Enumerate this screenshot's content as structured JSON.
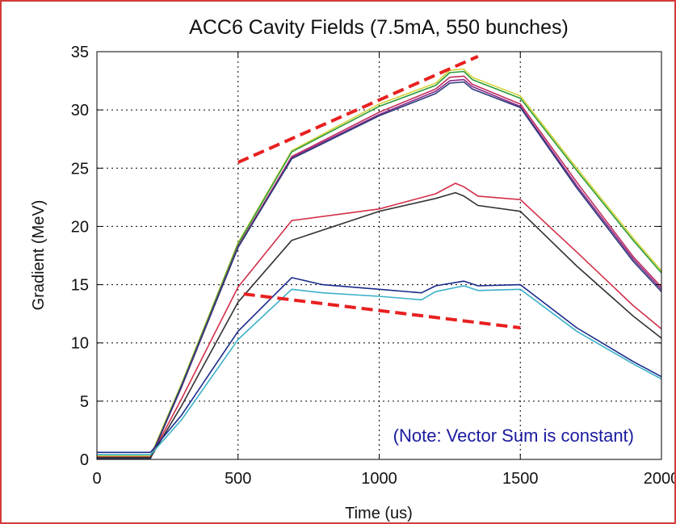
{
  "chart_data": {
    "type": "line",
    "title": "ACC6 Cavity Fields (7.5mA, 550 bunches)",
    "xlabel": "Time (us)",
    "ylabel": "Gradient (MeV)",
    "xlim": [
      0,
      2000
    ],
    "ylim": [
      0,
      35
    ],
    "xticks": [
      0,
      500,
      1000,
      1500,
      2000
    ],
    "xtick_labels": [
      "0",
      "500",
      "1000",
      "1500",
      "2000"
    ],
    "yticks": [
      0,
      5,
      10,
      15,
      20,
      25,
      30,
      35
    ],
    "ytick_labels": [
      "0",
      "5",
      "10",
      "15",
      "20",
      "25",
      "30",
      "35"
    ],
    "grid": true,
    "legend": "none",
    "series": [
      {
        "color": "#d4d43a",
        "points": [
          [
            0,
            0.3
          ],
          [
            190,
            0.3
          ],
          [
            300,
            6.5
          ],
          [
            500,
            18.6
          ],
          [
            690,
            26.5
          ],
          [
            1000,
            30.5
          ],
          [
            1200,
            32.3
          ],
          [
            1250,
            33.4
          ],
          [
            1300,
            33.5
          ],
          [
            1330,
            32.8
          ],
          [
            1500,
            31.2
          ],
          [
            1700,
            25.0
          ],
          [
            1900,
            19.0
          ],
          [
            2000,
            16.2
          ]
        ]
      },
      {
        "color": "#2e9c3a",
        "points": [
          [
            0,
            0.2
          ],
          [
            190,
            0.2
          ],
          [
            300,
            6.4
          ],
          [
            500,
            18.5
          ],
          [
            690,
            26.4
          ],
          [
            1000,
            30.3
          ],
          [
            1200,
            32.1
          ],
          [
            1250,
            33.2
          ],
          [
            1300,
            33.3
          ],
          [
            1330,
            32.6
          ],
          [
            1500,
            31.0
          ],
          [
            1700,
            24.8
          ],
          [
            1900,
            18.8
          ],
          [
            2000,
            16.0
          ]
        ]
      },
      {
        "color": "#c03060",
        "points": [
          [
            0,
            0.15
          ],
          [
            190,
            0.15
          ],
          [
            300,
            6.3
          ],
          [
            500,
            18.3
          ],
          [
            690,
            26.0
          ],
          [
            1000,
            29.8
          ],
          [
            1200,
            31.8
          ],
          [
            1250,
            32.8
          ],
          [
            1300,
            32.9
          ],
          [
            1330,
            32.2
          ],
          [
            1500,
            30.5
          ],
          [
            1700,
            23.8
          ],
          [
            1900,
            17.4
          ],
          [
            2000,
            14.8
          ]
        ]
      },
      {
        "color": "#8a2a8a",
        "points": [
          [
            0,
            0.1
          ],
          [
            190,
            0.1
          ],
          [
            300,
            6.2
          ],
          [
            500,
            18.2
          ],
          [
            690,
            25.9
          ],
          [
            1000,
            29.6
          ],
          [
            1200,
            31.6
          ],
          [
            1250,
            32.5
          ],
          [
            1300,
            32.6
          ],
          [
            1330,
            32.0
          ],
          [
            1500,
            30.3
          ],
          [
            1700,
            23.5
          ],
          [
            1900,
            17.2
          ],
          [
            2000,
            14.6
          ]
        ]
      },
      {
        "color": "#2a3a7a",
        "points": [
          [
            0,
            0.1
          ],
          [
            190,
            0.1
          ],
          [
            300,
            6.3
          ],
          [
            500,
            18.2
          ],
          [
            690,
            25.8
          ],
          [
            1000,
            29.5
          ],
          [
            1200,
            31.4
          ],
          [
            1250,
            32.3
          ],
          [
            1300,
            32.4
          ],
          [
            1330,
            31.8
          ],
          [
            1500,
            30.2
          ],
          [
            1700,
            23.3
          ],
          [
            1900,
            17.0
          ],
          [
            2000,
            14.4
          ]
        ]
      },
      {
        "color": "#d2304a",
        "points": [
          [
            0,
            0.2
          ],
          [
            190,
            0.2
          ],
          [
            300,
            5.2
          ],
          [
            500,
            14.8
          ],
          [
            690,
            20.5
          ],
          [
            1000,
            21.5
          ],
          [
            1200,
            22.8
          ],
          [
            1270,
            23.7
          ],
          [
            1300,
            23.4
          ],
          [
            1350,
            22.6
          ],
          [
            1500,
            22.3
          ],
          [
            1700,
            17.8
          ],
          [
            1900,
            13.2
          ],
          [
            2000,
            11.2
          ]
        ]
      },
      {
        "color": "#333333",
        "points": [
          [
            0,
            0.15
          ],
          [
            190,
            0.15
          ],
          [
            300,
            4.6
          ],
          [
            500,
            13.5
          ],
          [
            690,
            18.8
          ],
          [
            1000,
            21.3
          ],
          [
            1200,
            22.4
          ],
          [
            1270,
            22.9
          ],
          [
            1300,
            22.6
          ],
          [
            1350,
            21.8
          ],
          [
            1500,
            21.3
          ],
          [
            1700,
            16.6
          ],
          [
            1900,
            12.3
          ],
          [
            2000,
            10.4
          ]
        ]
      },
      {
        "color": "#1a2a8a",
        "points": [
          [
            0,
            0.6
          ],
          [
            190,
            0.6
          ],
          [
            300,
            3.8
          ],
          [
            500,
            11.0
          ],
          [
            690,
            15.6
          ],
          [
            800,
            15.0
          ],
          [
            1000,
            14.6
          ],
          [
            1150,
            14.3
          ],
          [
            1200,
            14.9
          ],
          [
            1300,
            15.3
          ],
          [
            1350,
            14.9
          ],
          [
            1500,
            15.0
          ],
          [
            1700,
            11.3
          ],
          [
            1900,
            8.4
          ],
          [
            2000,
            7.1
          ]
        ]
      },
      {
        "color": "#3ab0c8",
        "points": [
          [
            0,
            0.4
          ],
          [
            190,
            0.4
          ],
          [
            300,
            3.4
          ],
          [
            500,
            10.3
          ],
          [
            690,
            14.6
          ],
          [
            800,
            14.3
          ],
          [
            1000,
            14.0
          ],
          [
            1150,
            13.7
          ],
          [
            1200,
            14.4
          ],
          [
            1300,
            14.9
          ],
          [
            1350,
            14.5
          ],
          [
            1500,
            14.6
          ],
          [
            1700,
            11.0
          ],
          [
            1900,
            8.2
          ],
          [
            2000,
            6.9
          ]
        ]
      }
    ],
    "trend_lines": [
      {
        "color": "#e82020",
        "points": [
          [
            500,
            25.5
          ],
          [
            1350,
            34.6
          ]
        ]
      },
      {
        "color": "#e82020",
        "points": [
          [
            520,
            14.2
          ],
          [
            1500,
            11.3
          ]
        ]
      }
    ],
    "annotation": {
      "text": "(Note: Vector Sum is constant)",
      "color": "#1a1aa0"
    }
  }
}
